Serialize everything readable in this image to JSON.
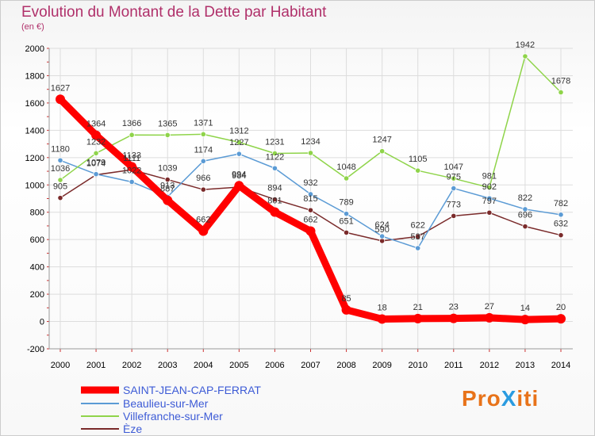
{
  "title": "Evolution du Montant de la Dette par Habitant",
  "subtitle": "(en €)",
  "logo": {
    "text": "ProXiti",
    "colors": [
      "#e8731a",
      "#e8731a",
      "#e8731a",
      "#2a9be0",
      "#e8731a",
      "#e8731a",
      "#e8731a"
    ]
  },
  "chart_data": {
    "type": "line",
    "title": "Evolution du Montant de la Dette par Habitant",
    "ylabel": "(en €)",
    "ylim": [
      -200,
      2000
    ],
    "yticks": [
      "-200",
      "0",
      "200",
      "400",
      "600",
      "800",
      "1000",
      "1200",
      "1400",
      "1600",
      "1800",
      "2000"
    ],
    "x": [
      "2000",
      "2001",
      "2002",
      "2003",
      "2004",
      "2005",
      "2006",
      "2007",
      "2008",
      "2009",
      "2010",
      "2011",
      "2012",
      "2013",
      "2014"
    ],
    "series": [
      {
        "name": "SAINT-JEAN-CAP-FERRAT",
        "color": "#ff0000",
        "values": [
          1627,
          1364,
          1133,
          887,
          662,
          994,
          801,
          662,
          85,
          18,
          21,
          23,
          27,
          14,
          20
        ]
      },
      {
        "name": "Beaulieu-sur-Mer",
        "color": "#5b9bd5",
        "values": [
          1180,
          1079,
          1022,
          913,
          1174,
          1227,
          1122,
          932,
          789,
          624,
          537,
          975,
          902,
          822,
          782
        ]
      },
      {
        "name": "Villefranche-sur-Mer",
        "color": "#8fd44a",
        "values": [
          1036,
          1232,
          1366,
          1365,
          1371,
          1312,
          1231,
          1234,
          1048,
          1247,
          1105,
          1047,
          981,
          1942,
          1678
        ]
      },
      {
        "name": "Èze",
        "color": "#7a2a2a",
        "values": [
          905,
          1074,
          1111,
          1039,
          966,
          984,
          894,
          815,
          651,
          590,
          622,
          773,
          797,
          696,
          632
        ]
      }
    ],
    "grid": true,
    "legend": "bottom-left"
  }
}
